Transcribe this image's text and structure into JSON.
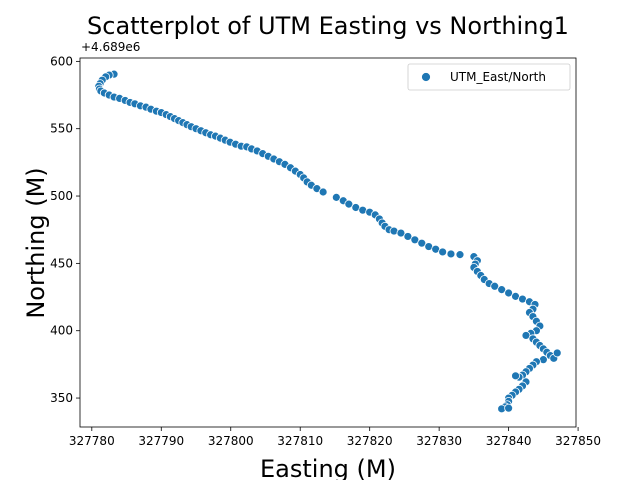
{
  "chart_data": {
    "type": "scatter",
    "title": "Scatterplot of UTM Easting vs Northing1",
    "xlabel": "Easting (M)",
    "ylabel": "Northing (M)",
    "y_offset_label": "+4.689e6",
    "xlim": [
      327778.3,
      327849.7
    ],
    "ylim": [
      328.5,
      602.5
    ],
    "x_ticks": [
      327780,
      327790,
      327800,
      327810,
      327820,
      327830,
      327840,
      327850
    ],
    "y_ticks": [
      350,
      400,
      450,
      500,
      550,
      600
    ],
    "grid": false,
    "legend_position": "top-right",
    "marker_color": "#1f77b4",
    "series": [
      {
        "name": "UTM_East/North",
        "points": [
          [
            327783.2,
            590.5
          ],
          [
            327782.5,
            589.8
          ],
          [
            327782.0,
            588.5
          ],
          [
            327781.5,
            586.0
          ],
          [
            327781.2,
            583.5
          ],
          [
            327781.0,
            581.5
          ],
          [
            327781.1,
            579.5
          ],
          [
            327781.3,
            578.0
          ],
          [
            327781.8,
            576.5
          ],
          [
            327782.5,
            575.0
          ],
          [
            327783.2,
            573.5
          ],
          [
            327784.0,
            572.5
          ],
          [
            327784.8,
            571.0
          ],
          [
            327785.5,
            569.5
          ],
          [
            327786.2,
            568.5
          ],
          [
            327787.0,
            567.0
          ],
          [
            327787.8,
            566.0
          ],
          [
            327788.5,
            564.5
          ],
          [
            327789.3,
            563.0
          ],
          [
            327790.0,
            562.0
          ],
          [
            327790.7,
            560.5
          ],
          [
            327791.3,
            559.0
          ],
          [
            327791.9,
            557.5
          ],
          [
            327792.5,
            556.0
          ],
          [
            327793.1,
            554.5
          ],
          [
            327793.7,
            553.0
          ],
          [
            327794.3,
            551.5
          ],
          [
            327795.0,
            550.0
          ],
          [
            327795.7,
            548.5
          ],
          [
            327796.4,
            547.0
          ],
          [
            327797.1,
            545.5
          ],
          [
            327797.8,
            544.5
          ],
          [
            327798.5,
            543.0
          ],
          [
            327799.2,
            541.5
          ],
          [
            327799.9,
            540.0
          ],
          [
            327800.7,
            538.5
          ],
          [
            327801.5,
            537.0
          ],
          [
            327802.3,
            536.5
          ],
          [
            327803.0,
            535.0
          ],
          [
            327803.8,
            533.5
          ],
          [
            327804.6,
            531.5
          ],
          [
            327805.4,
            529.5
          ],
          [
            327806.2,
            527.5
          ],
          [
            327807.0,
            525.5
          ],
          [
            327807.8,
            523.5
          ],
          [
            327808.6,
            521.0
          ],
          [
            327809.3,
            518.5
          ],
          [
            327810.0,
            516.0
          ],
          [
            327810.5,
            513.5
          ],
          [
            327811.0,
            510.5
          ],
          [
            327811.6,
            508.0
          ],
          [
            327812.4,
            505.5
          ],
          [
            327813.3,
            503.0
          ],
          [
            327815.2,
            499.0
          ],
          [
            327816.2,
            496.5
          ],
          [
            327817.0,
            494.0
          ],
          [
            327818.0,
            491.5
          ],
          [
            327819.0,
            489.5
          ],
          [
            327820.0,
            488.0
          ],
          [
            327820.8,
            486.0
          ],
          [
            327821.4,
            483.0
          ],
          [
            327821.8,
            480.0
          ],
          [
            327822.2,
            477.5
          ],
          [
            327822.8,
            475.0
          ],
          [
            327823.5,
            474.0
          ],
          [
            327824.5,
            472.5
          ],
          [
            327825.5,
            470.0
          ],
          [
            327826.5,
            467.5
          ],
          [
            327827.5,
            465.0
          ],
          [
            327828.5,
            462.5
          ],
          [
            327829.5,
            460.5
          ],
          [
            327830.5,
            458.5
          ],
          [
            327831.7,
            457.0
          ],
          [
            327833.0,
            456.5
          ],
          [
            327835.0,
            455.0
          ],
          [
            327835.5,
            452.0
          ],
          [
            327835.2,
            449.5
          ],
          [
            327835.0,
            447.0
          ],
          [
            327835.5,
            444.0
          ],
          [
            327836.0,
            441.0
          ],
          [
            327836.5,
            438.0
          ],
          [
            327837.2,
            435.0
          ],
          [
            327838.0,
            433.0
          ],
          [
            327839.0,
            430.5
          ],
          [
            327840.0,
            428.0
          ],
          [
            327841.0,
            425.5
          ],
          [
            327842.0,
            423.5
          ],
          [
            327843.0,
            421.5
          ],
          [
            327843.8,
            419.5
          ],
          [
            327843.5,
            416.0
          ],
          [
            327843.0,
            413.5
          ],
          [
            327843.5,
            410.5
          ],
          [
            327844.0,
            407.0
          ],
          [
            327844.5,
            403.5
          ],
          [
            327844.0,
            400.0
          ],
          [
            327843.2,
            398.0
          ],
          [
            327842.5,
            396.5
          ],
          [
            327843.5,
            394.0
          ],
          [
            327844.0,
            391.5
          ],
          [
            327844.5,
            389.0
          ],
          [
            327845.0,
            386.5
          ],
          [
            327845.5,
            384.0
          ],
          [
            327846.0,
            381.5
          ],
          [
            327846.5,
            379.5
          ],
          [
            327847.0,
            383.5
          ],
          [
            327845.0,
            378.5
          ],
          [
            327844.0,
            377.0
          ],
          [
            327843.5,
            374.5
          ],
          [
            327843.0,
            372.0
          ],
          [
            327842.5,
            369.5
          ],
          [
            327842.0,
            367.0
          ],
          [
            327841.5,
            365.5
          ],
          [
            327841.0,
            366.5
          ],
          [
            327842.5,
            362.0
          ],
          [
            327842.0,
            359.0
          ],
          [
            327841.5,
            356.5
          ],
          [
            327841.0,
            354.5
          ],
          [
            327840.5,
            352.0
          ],
          [
            327840.0,
            350.0
          ],
          [
            327840.0,
            347.5
          ],
          [
            327839.8,
            345.0
          ],
          [
            327839.5,
            343.5
          ],
          [
            327839.0,
            342.0
          ],
          [
            327840.0,
            342.5
          ]
        ]
      }
    ]
  }
}
